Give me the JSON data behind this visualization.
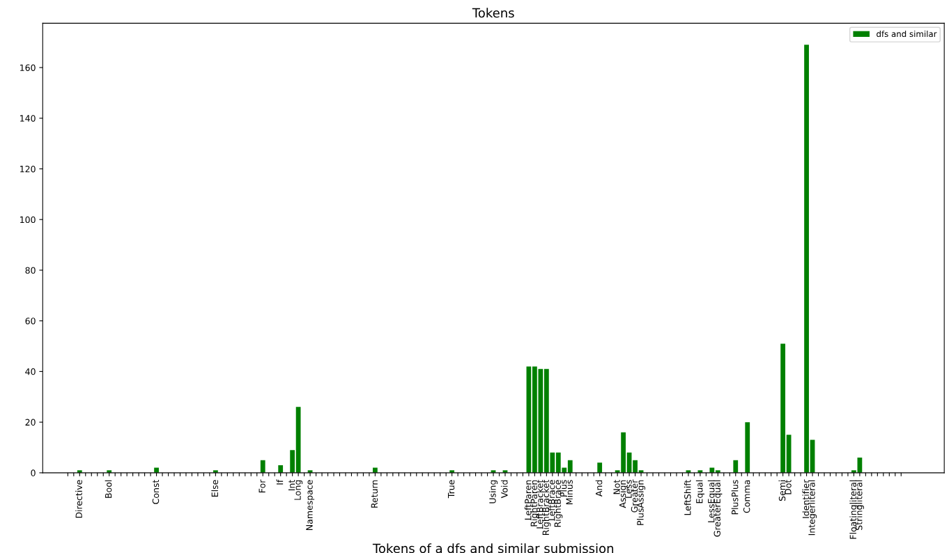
{
  "chart_data": {
    "type": "bar",
    "title": "Tokens",
    "xlabel": "Tokens of a dfs and similar submission",
    "categories": [
      null,
      null,
      "Directive",
      null,
      null,
      null,
      null,
      "Bool",
      null,
      null,
      null,
      null,
      null,
      null,
      null,
      "Const",
      null,
      null,
      null,
      null,
      null,
      null,
      null,
      null,
      null,
      "Else",
      null,
      null,
      null,
      null,
      null,
      null,
      null,
      "For",
      null,
      null,
      "If",
      null,
      "Int",
      "Long",
      null,
      "Namespace",
      null,
      null,
      null,
      null,
      null,
      null,
      null,
      null,
      null,
      null,
      "Return",
      null,
      null,
      null,
      null,
      null,
      null,
      null,
      null,
      null,
      null,
      null,
      null,
      "True",
      null,
      null,
      null,
      null,
      null,
      null,
      "Using",
      null,
      "Void",
      null,
      null,
      null,
      "LeftParen",
      "RightParen",
      "LeftBracket",
      "RightBracket",
      "LeftBrace",
      "RightBrace",
      "Plus",
      "Minus",
      null,
      null,
      null,
      null,
      "And",
      null,
      null,
      "Not",
      "Assign",
      "Less",
      "Greater",
      "PlusAssign",
      null,
      null,
      null,
      null,
      null,
      null,
      null,
      "LeftShift",
      null,
      "Equal",
      null,
      "LessEqual",
      "GreaterEqual",
      null,
      null,
      "PlusPlus",
      null,
      "Comma",
      null,
      null,
      null,
      null,
      null,
      "Semi",
      "Dot",
      null,
      null,
      "Identifier",
      "Integerliteral",
      null,
      null,
      null,
      null,
      null,
      null,
      "Floatingliteral",
      "Stringliteral",
      null,
      null,
      null,
      null,
      null,
      null,
      null
    ],
    "series": [
      {
        "name": "dfs and similar",
        "color": "#008000",
        "values": [
          0,
          0,
          1,
          0,
          0,
          0,
          0,
          1,
          0,
          0,
          0,
          0,
          0,
          0,
          0,
          2,
          0,
          0,
          0,
          0,
          0,
          0,
          0,
          0,
          0,
          1,
          0,
          0,
          0,
          0,
          0,
          0,
          0,
          5,
          0,
          0,
          3,
          0,
          9,
          26,
          0,
          1,
          0,
          0,
          0,
          0,
          0,
          0,
          0,
          0,
          0,
          0,
          2,
          0,
          0,
          0,
          0,
          0,
          0,
          0,
          0,
          0,
          0,
          0,
          0,
          1,
          0,
          0,
          0,
          0,
          0,
          0,
          1,
          0,
          1,
          0,
          0,
          0,
          42,
          42,
          41,
          41,
          8,
          8,
          2,
          5,
          0,
          0,
          0,
          0,
          4,
          0,
          0,
          1,
          16,
          8,
          5,
          1,
          0,
          0,
          0,
          0,
          0,
          0,
          0,
          1,
          0,
          1,
          0,
          2,
          1,
          0,
          0,
          5,
          0,
          20,
          0,
          0,
          0,
          0,
          0,
          51,
          15,
          0,
          0,
          169,
          13,
          0,
          0,
          0,
          0,
          0,
          0,
          1,
          6,
          0,
          0,
          0,
          0,
          0,
          0,
          0
        ]
      }
    ],
    "ylim": [
      0,
      177.5
    ],
    "yticks": [
      0,
      20,
      40,
      60,
      80,
      100,
      120,
      140,
      160
    ],
    "grid": false,
    "legend": "top right"
  }
}
